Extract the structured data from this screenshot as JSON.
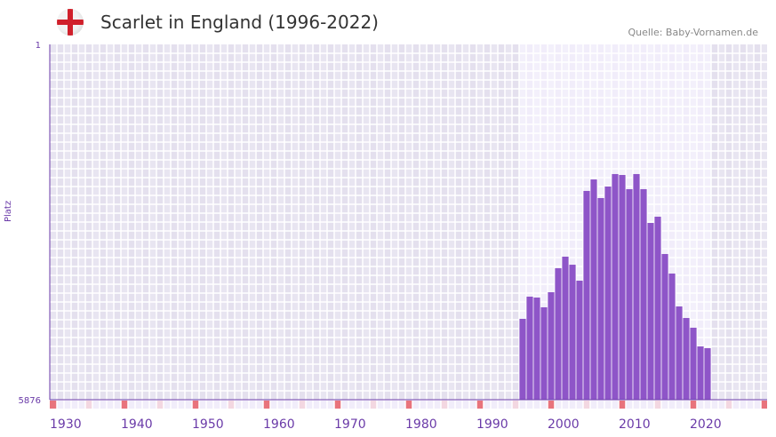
{
  "header": {
    "title": "Scarlet in England (1996-2022)",
    "source": "Quelle: Baby-Vornamen.de",
    "flag_icon": "england-flag-icon"
  },
  "colors": {
    "bar": "#8e55c8",
    "axis": "#6a3aa8",
    "bg_outside": "#e4e0ee",
    "bg_inside": "#f1edfa",
    "marker_decade": "#e8737c",
    "marker_half": "#f3d7e1",
    "marker_other": "#f1edfa"
  },
  "chart_data": {
    "type": "bar",
    "title": "Scarlet in England (1996-2022)",
    "xlabel": "",
    "ylabel": "Platz",
    "y_inverted": true,
    "ylim": [
      1,
      5876
    ],
    "y_ticks": [
      "1",
      "5876"
    ],
    "xlim": [
      1929.5,
      2030.4
    ],
    "x_ticks": [
      1930,
      1940,
      1950,
      1960,
      1970,
      1980,
      1990,
      2000,
      2010,
      2020
    ],
    "highlight_range": [
      1996,
      2022
    ],
    "grid": true,
    "x": [
      1996,
      1997,
      1998,
      1999,
      2000,
      2001,
      2002,
      2003,
      2004,
      2005,
      2006,
      2007,
      2008,
      2009,
      2010,
      2011,
      2012,
      2013,
      2014,
      2015,
      2016,
      2017,
      2018,
      2019,
      2020,
      2021,
      2022
    ],
    "values": [
      4539,
      4172,
      4187,
      4348,
      4099,
      3702,
      3511,
      3644,
      3908,
      2424,
      2234,
      2542,
      2351,
      2145,
      2160,
      2395,
      2145,
      2395,
      2953,
      2850,
      3467,
      3790,
      4334,
      4525,
      4686,
      4995,
      5024
    ]
  }
}
